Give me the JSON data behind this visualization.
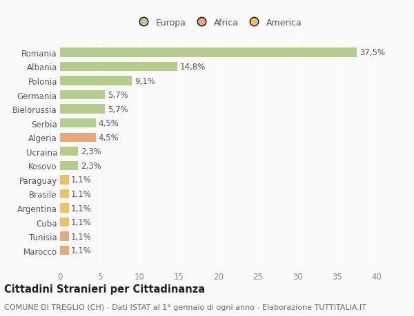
{
  "categories": [
    "Marocco",
    "Tunisia",
    "Cuba",
    "Argentina",
    "Brasile",
    "Paraguay",
    "Kosovo",
    "Ucraina",
    "Algeria",
    "Serbia",
    "Bielorussia",
    "Germania",
    "Polonia",
    "Albania",
    "Romania"
  ],
  "values": [
    1.1,
    1.1,
    1.1,
    1.1,
    1.1,
    1.1,
    2.3,
    2.3,
    4.5,
    4.5,
    5.7,
    5.7,
    9.1,
    14.8,
    37.5
  ],
  "labels": [
    "1,1%",
    "1,1%",
    "1,1%",
    "1,1%",
    "1,1%",
    "1,1%",
    "2,3%",
    "2,3%",
    "4,5%",
    "4,5%",
    "5,7%",
    "5,7%",
    "9,1%",
    "14,8%",
    "37,5%"
  ],
  "colors": [
    "#e8a87c",
    "#e8a87c",
    "#f0c060",
    "#f0c060",
    "#f0c060",
    "#f0c060",
    "#b5cc8e",
    "#b5cc8e",
    "#e8a87c",
    "#b5cc8e",
    "#b5cc8e",
    "#b5cc8e",
    "#b5cc8e",
    "#b5cc8e",
    "#b5cc8e"
  ],
  "legend_labels": [
    "Europa",
    "Africa",
    "America"
  ],
  "legend_colors": [
    "#b5cc8e",
    "#e8a87c",
    "#f0c060"
  ],
  "title": "Cittadini Stranieri per Cittadinanza",
  "subtitle": "COMUNE DI TREGLIO (CH) - Dati ISTAT al 1° gennaio di ogni anno - Elaborazione TUTTITALIA.IT",
  "xlim": [
    0,
    40
  ],
  "xticks": [
    0,
    5,
    10,
    15,
    20,
    25,
    30,
    35,
    40
  ],
  "background_color": "#f9f9f9",
  "grid_color": "#ffffff",
  "bar_height": 0.65,
  "label_fontsize": 8.5,
  "title_fontsize": 10.5,
  "subtitle_fontsize": 8,
  "tick_fontsize": 8.5,
  "legend_fontsize": 9
}
